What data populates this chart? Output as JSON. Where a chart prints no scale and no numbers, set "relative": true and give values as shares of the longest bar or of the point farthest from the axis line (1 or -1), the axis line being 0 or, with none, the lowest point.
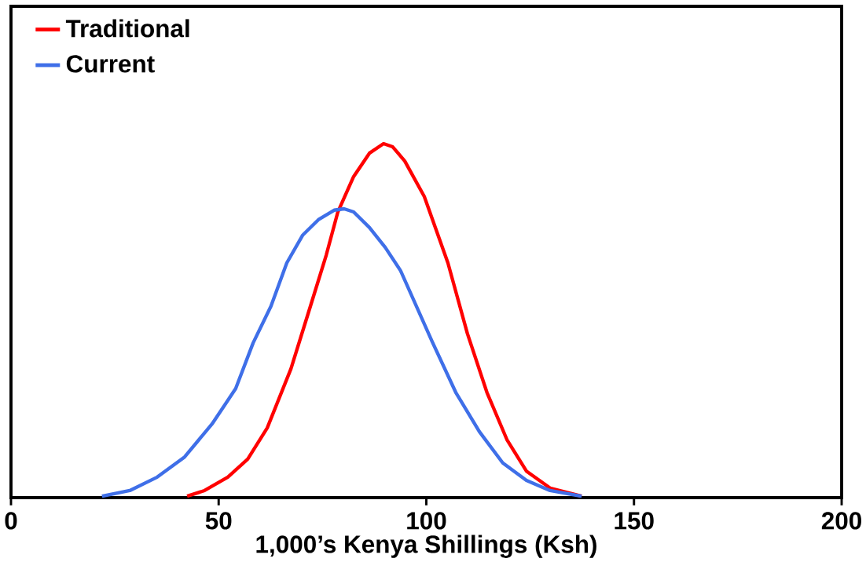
{
  "chart_data": {
    "type": "line",
    "xlabel": "1,000’s Kenya Shillings (Ksh)",
    "relative": true,
    "xlim": [
      0,
      200
    ],
    "xticks": [
      0,
      50,
      100,
      150,
      200
    ],
    "legend": "top left",
    "marker": "none",
    "line_style": "solid",
    "grid": false,
    "series": [
      {
        "name": "Traditional",
        "color": "#ff0000",
        "x": [
          42.4,
          46.6,
          52.2,
          57.0,
          61.7,
          67.4,
          72.1,
          75.9,
          78.7,
          82.5,
          86.3,
          89.7,
          91.9,
          94.8,
          99.5,
          105.2,
          109.9,
          114.6,
          119.4,
          124.1,
          129.8,
          137.4
        ],
        "values": [
          0.004,
          0.02,
          0.058,
          0.109,
          0.197,
          0.364,
          0.541,
          0.685,
          0.807,
          0.907,
          0.973,
          1.0,
          0.991,
          0.951,
          0.851,
          0.663,
          0.463,
          0.297,
          0.164,
          0.075,
          0.027,
          0.004
        ]
      },
      {
        "name": "Current",
        "color": "#3f6fe8",
        "x": [
          21.9,
          28.6,
          35.2,
          41.8,
          48.4,
          54.1,
          58.3,
          62.6,
          66.4,
          70.2,
          74.0,
          77.8,
          80.2,
          82.5,
          86.3,
          90.1,
          93.8,
          97.6,
          101.4,
          107.1,
          112.8,
          118.4,
          124.1,
          129.8,
          137.4
        ],
        "values": [
          0.004,
          0.02,
          0.058,
          0.115,
          0.208,
          0.308,
          0.437,
          0.541,
          0.663,
          0.741,
          0.785,
          0.812,
          0.816,
          0.807,
          0.763,
          0.707,
          0.641,
          0.541,
          0.441,
          0.297,
          0.186,
          0.098,
          0.049,
          0.02,
          0.004
        ]
      }
    ]
  }
}
